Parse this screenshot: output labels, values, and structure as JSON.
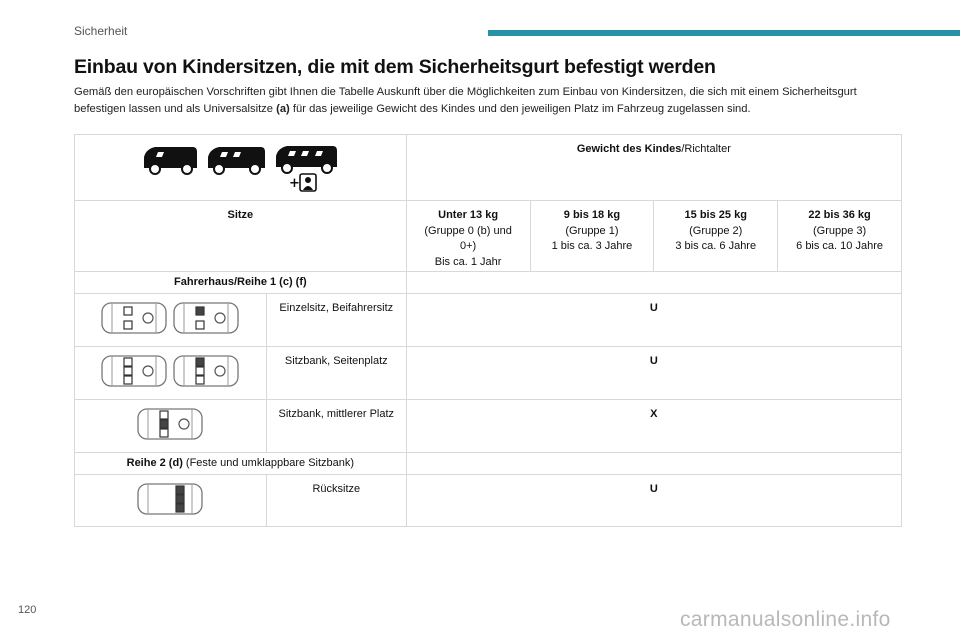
{
  "header": {
    "section": "Sicherheit",
    "accent_color": "#2592a6"
  },
  "title": "Einbau von Kindersitzen, die mit dem Sicherheitsgurt befestigt werden",
  "intro": {
    "before": "Gemäß den europäischen Vorschriften gibt Ihnen die Tabelle Auskunft über die Möglichkeiten zum Einbau von Kindersitzen, die sich mit einem Sicherheitsgurt befestigen lassen und als Universalsitze ",
    "bold": "(a)",
    "after": " für das jeweilige Gewicht des Kindes und den jeweiligen Platz im Fahrzeug zugelassen sind."
  },
  "table": {
    "weight_header_bold": "Gewicht des Kindes",
    "weight_header_rest": "/Richtalter",
    "seats_label": "Sitze",
    "groups": [
      {
        "weight": "Unter 13 kg",
        "line1": "(Gruppe 0 (b) und",
        "line2": "0+)",
        "line3": "Bis ca. 1 Jahr"
      },
      {
        "weight": "9 bis 18 kg",
        "line1": "(Gruppe 1)",
        "line2": "1 bis ca. 3 Jahre",
        "line3": ""
      },
      {
        "weight": "15 bis 25 kg",
        "line1": "(Gruppe 2)",
        "line2": "3 bis ca. 6 Jahre",
        "line3": ""
      },
      {
        "weight": "22 bis 36 kg",
        "line1": "(Gruppe 3)",
        "line2": "6 bis ca. 10 Jahre",
        "line3": ""
      }
    ],
    "section1": "Fahrerhaus/Reihe 1 (c) (f)",
    "row1": {
      "label": "Einzelsitz, Beifahrersitz",
      "value": "U"
    },
    "row2": {
      "label": "Sitzbank, Seitenplatz",
      "value": "U"
    },
    "row3": {
      "label": "Sitzbank, mittlerer Platz",
      "value": "X"
    },
    "section2_bold": "Reihe 2 (d)",
    "section2_rest": " (Feste und umklappbare Sitzbank)",
    "row4": {
      "label": "Rücksitze",
      "value": "U"
    }
  },
  "icons": {
    "vans": "van-side-icon",
    "child": "child-seat-icon",
    "seat_layout": "seat-layout-icon"
  },
  "footer": {
    "page_number": "120",
    "watermark": "carmanualsonline.info"
  }
}
